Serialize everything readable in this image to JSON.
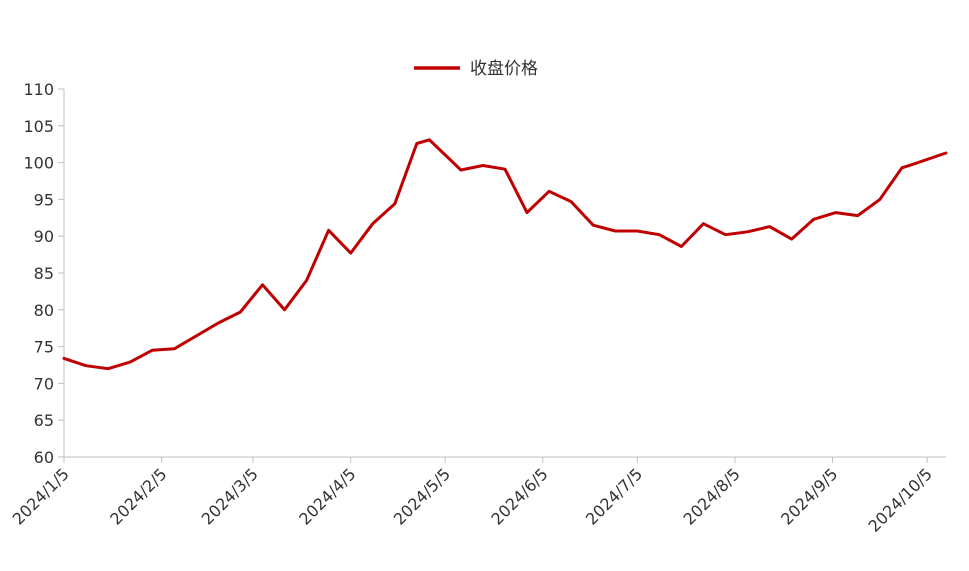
{
  "chart_data": {
    "type": "line",
    "series": [
      {
        "name": "收盘价格",
        "color": "#c00000",
        "values": [
          [
            "2024-01-05",
            73.4
          ],
          [
            "2024-01-12",
            72.4
          ],
          [
            "2024-01-19",
            72.0
          ],
          [
            "2024-01-26",
            72.9
          ],
          [
            "2024-02-02",
            74.5
          ],
          [
            "2024-02-09",
            74.7
          ],
          [
            "2024-02-23",
            78.2
          ],
          [
            "2024-03-01",
            79.7
          ],
          [
            "2024-03-08",
            83.4
          ],
          [
            "2024-03-15",
            80.0
          ],
          [
            "2024-03-22",
            84.0
          ],
          [
            "2024-03-29",
            90.8
          ],
          [
            "2024-04-05",
            87.7
          ],
          [
            "2024-04-12",
            91.7
          ],
          [
            "2024-04-19",
            94.4
          ],
          [
            "2024-04-26",
            102.6
          ],
          [
            "2024-04-30",
            103.1
          ],
          [
            "2024-05-10",
            99.0
          ],
          [
            "2024-05-17",
            99.6
          ],
          [
            "2024-05-24",
            99.1
          ],
          [
            "2024-05-31",
            93.2
          ],
          [
            "2024-06-07",
            96.1
          ],
          [
            "2024-06-14",
            94.7
          ],
          [
            "2024-06-21",
            91.5
          ],
          [
            "2024-06-28",
            90.7
          ],
          [
            "2024-07-05",
            90.7
          ],
          [
            "2024-07-12",
            90.2
          ],
          [
            "2024-07-19",
            88.6
          ],
          [
            "2024-07-26",
            91.7
          ],
          [
            "2024-08-02",
            90.2
          ],
          [
            "2024-08-09",
            90.6
          ],
          [
            "2024-08-16",
            91.3
          ],
          [
            "2024-08-23",
            89.6
          ],
          [
            "2024-08-30",
            92.3
          ],
          [
            "2024-09-06",
            93.2
          ],
          [
            "2024-09-13",
            92.8
          ],
          [
            "2024-09-20",
            95.0
          ],
          [
            "2024-09-27",
            99.3
          ],
          [
            "2024-09-30",
            99.7
          ],
          [
            "2024-10-11",
            101.3
          ]
        ]
      }
    ],
    "x_ticks": [
      {
        "date": "2024-01-05",
        "label": "2024/1/5"
      },
      {
        "date": "2024-02-05",
        "label": "2024/2/5"
      },
      {
        "date": "2024-03-05",
        "label": "2024/3/5"
      },
      {
        "date": "2024-04-05",
        "label": "2024/4/5"
      },
      {
        "date": "2024-05-05",
        "label": "2024/5/5"
      },
      {
        "date": "2024-06-05",
        "label": "2024/6/5"
      },
      {
        "date": "2024-07-05",
        "label": "2024/7/5"
      },
      {
        "date": "2024-08-05",
        "label": "2024/8/5"
      },
      {
        "date": "2024-09-05",
        "label": "2024/9/5"
      },
      {
        "date": "2024-10-05",
        "label": "2024/10/5"
      }
    ],
    "y_ticks": [
      "60",
      "65",
      "70",
      "75",
      "80",
      "85",
      "90",
      "95",
      "100",
      "105",
      "110"
    ],
    "ylim": [
      60,
      110
    ],
    "xlim": [
      "2024-01-05",
      "2024-10-11"
    ],
    "legend_position": "top-center",
    "grid": false,
    "axis_color": "#bfbfbf"
  }
}
